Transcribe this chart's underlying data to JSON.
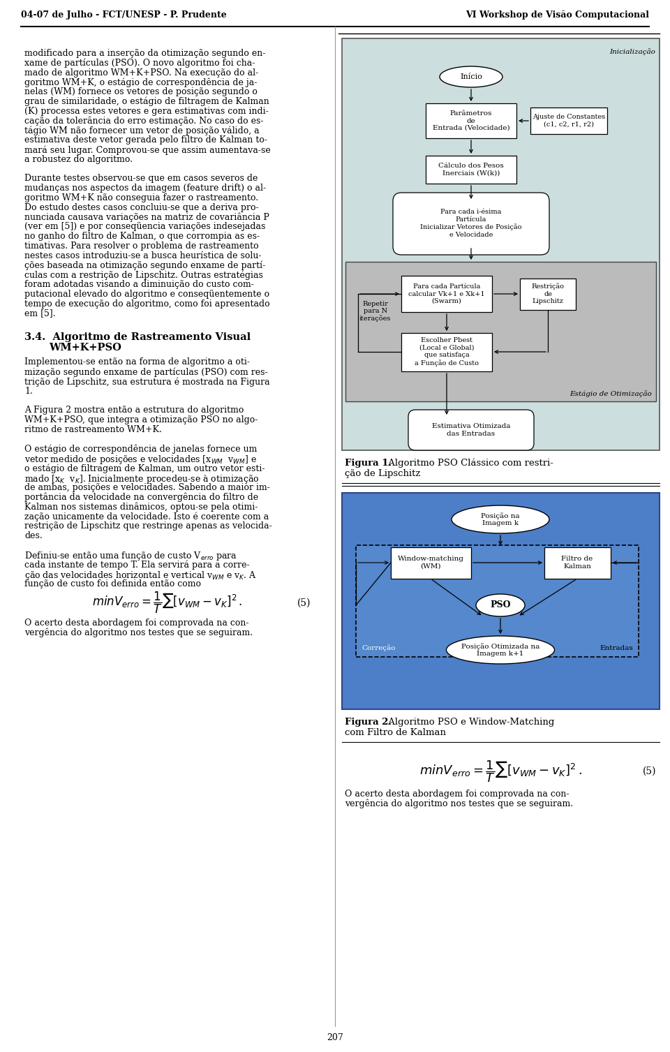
{
  "header_left": "04-07 de Julho - FCT/UNESP - P. Prudente",
  "header_right": "VI Workshop de Visão Computacional",
  "page_number": "207",
  "body_text_left": [
    "modificado para a inserção da otimização segundo en-",
    "xame de partículas (PSO). O novo algoritmo foi cha-",
    "mado de algoritmo WM+K+PSO. Na execução do al-",
    "goritmo WM+K, o estágio de correspondência de ja-",
    "nelas (WM) fornece os vetores de posição segundo o",
    "grau de similaridade, o estágio de filtragem de Kalman",
    "(K) processa estes vetores e gera estimativas com indi-",
    "cação da tolerância do erro estimação. No caso do es-",
    "tágio WM não fornecer um vetor de posição válido, a",
    "estimativa deste vetor gerada pelo filtro de Kalman to-",
    "mará seu lugar. Comprovou-se que assim aumentava-se",
    "a robustez do algoritmo.",
    "",
    "Durante testes observou-se que em casos severos de",
    "mudanças nos aspectos da imagem (\\textit{feature drift}) o al-",
    "goritmo WM+K não conseguia fazer o rastreamento.",
    "Do estudo destes casos concluiu-se que a deriva pro-",
    "nunciada causava variações na matriz de covariância \\textbf{P}",
    "(ver em [5]) e por conseqüencia variações indesejadas",
    "no ganho do filtro de Kalman, o que corrompia as es-",
    "timativas. Para resolver o problema de rastreamento",
    "nestes casos introduziu-se a busca heurística de solu-",
    "ções baseada na otimização segundo enxame de partí-",
    "culas com a restrição de \\textit{Lipschitz}. Outras estratégias",
    "foram adotadas visando a diminuição do custo com-",
    "putacional elevado do algoritmo e conseqüentemente o",
    "tempo de execução do algoritmo, como foi apresentado",
    "em [5]."
  ],
  "section_title_line1": "3.4.  Algoritmo de Rastreamento Visual",
  "section_title_line2": "WM+K+PSO",
  "section_body": [
    "Implementou-se então na forma de algoritmo a oti-",
    "mização segundo enxame de partículas (PSO) com res-",
    "trição de Lipschitz, sua estrutura é mostrada na Figura",
    "1.",
    "",
    "A Figura 2 mostra então a estrutura do algoritmo",
    "WM+K+PSO, que integra a otimização PSO no algo-",
    "ritmo de rastreamento WM+K.",
    "",
    "O estágio de correspondência de janelas fornece um",
    "vetor medido de posições e velocidades [x_WM  v_WM] e",
    "o estágio de filtragem de Kalman, um outro vetor esti-",
    "mado [x_K  v_K]. Inicialmente procedeu-se à otimização",
    "de ambas, posições e velocidades. Sabendo a maior im-",
    "portância da velocidade na convergência do filtro de",
    "Kalman nos sistemas dinâmicos, optou-se pela otimi-",
    "zação unicamente da velocidade. Isto é coerente com a",
    "restrição de Lipschitz que restringe apenas as velocida-",
    "des.",
    "",
    "Definiu-se então uma função de custo V_erro para",
    "cada instante de tempo T. Ela servirá para a corre-",
    "ção das velocidades horizontal e vertical v_WM e v_K. A",
    "função de custo foi definida então como"
  ],
  "bottom_text_right": [
    "O acerto desta abordagem foi comprovada na con-",
    "vergência do algoritmo nos testes que se seguiram."
  ],
  "bg_color": "#ffffff",
  "fig1_bg": "#ccdede",
  "fig1_opt_bg": "#bbbbbb",
  "fig2_bg": "#4d7ec8",
  "fig2_dashed_bg": "#6a9ad4"
}
